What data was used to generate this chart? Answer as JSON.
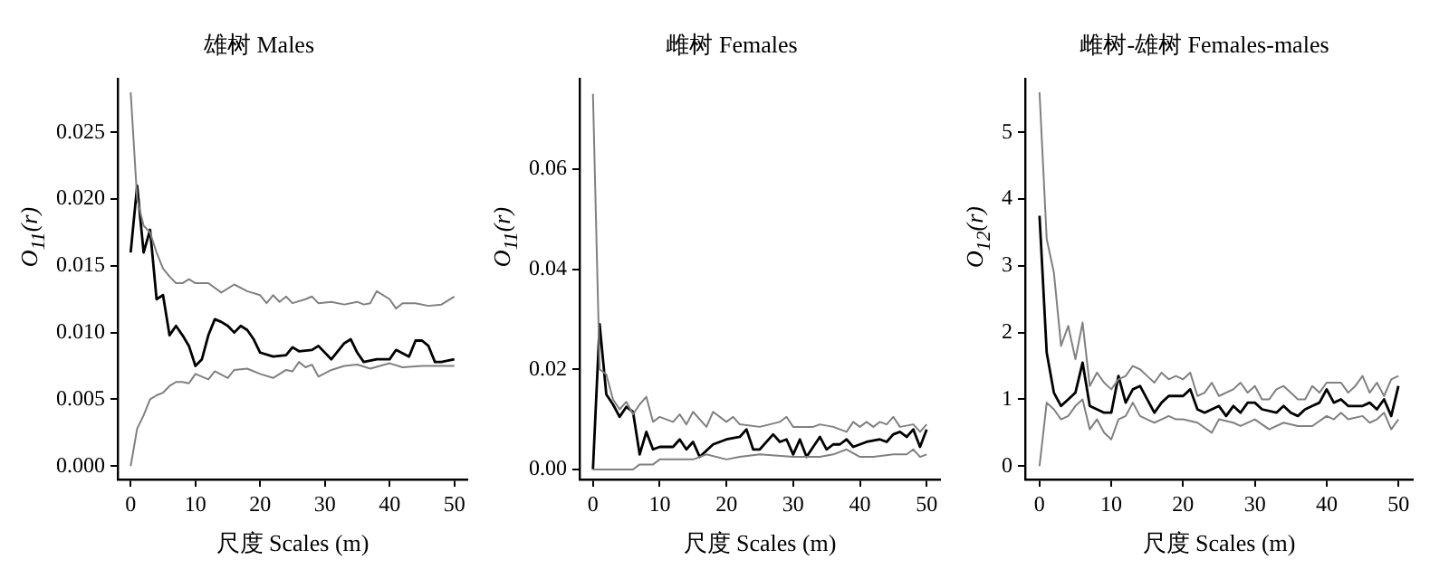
{
  "chart_data": [
    {
      "type": "line",
      "title": "雄树 Males",
      "xlabel": "尺度 Scales (m)",
      "ylabel": "O$_{11}$(r)",
      "xlim": [
        -2,
        52
      ],
      "xticks": [
        0,
        10,
        20,
        30,
        40,
        50
      ],
      "ylim": [
        -0.001,
        0.029
      ],
      "yticks": [
        {
          "value": 0,
          "label": "0.000"
        },
        {
          "value": 0.005,
          "label": "0.005"
        },
        {
          "value": 0.01,
          "label": "0.010"
        },
        {
          "value": 0.015,
          "label": "0.015"
        },
        {
          "value": 0.02,
          "label": "0.020"
        },
        {
          "value": 0.025,
          "label": "0.025"
        }
      ],
      "marker": "none",
      "series": [
        {
          "color": "#808080",
          "x": [
            0,
            1,
            2,
            3,
            4,
            5,
            6,
            7,
            8,
            9,
            10,
            12,
            14,
            16,
            18,
            20,
            21,
            22,
            23,
            24,
            25,
            27,
            28,
            29,
            31,
            33,
            35,
            36,
            37,
            38,
            40,
            41,
            42,
            44,
            46,
            48,
            50
          ],
          "values": [
            0.028,
            0.02,
            0.018,
            0.0175,
            0.016,
            0.0148,
            0.0142,
            0.0137,
            0.0137,
            0.014,
            0.0137,
            0.0137,
            0.013,
            0.0136,
            0.0131,
            0.0128,
            0.0122,
            0.0128,
            0.0123,
            0.0127,
            0.0122,
            0.0125,
            0.0127,
            0.0122,
            0.0123,
            0.0121,
            0.0123,
            0.0121,
            0.0122,
            0.0131,
            0.0125,
            0.0118,
            0.0122,
            0.0122,
            0.012,
            0.0121,
            0.0127
          ]
        },
        {
          "color": "#808080",
          "x": [
            0,
            1,
            2,
            3,
            4,
            5,
            6,
            7,
            8,
            9,
            10,
            12,
            13,
            15,
            16,
            18,
            20,
            22,
            24,
            25,
            26,
            27,
            28,
            29,
            31,
            33,
            35,
            37,
            40,
            42,
            45,
            50
          ],
          "values": [
            0,
            0.0028,
            0.0038,
            0.005,
            0.0053,
            0.0055,
            0.006,
            0.0063,
            0.0063,
            0.0062,
            0.0069,
            0.0065,
            0.0071,
            0.0066,
            0.0072,
            0.0073,
            0.0069,
            0.0066,
            0.0072,
            0.0071,
            0.0078,
            0.0074,
            0.0076,
            0.0067,
            0.0072,
            0.0075,
            0.0076,
            0.0073,
            0.0077,
            0.0074,
            0.0075,
            0.0075
          ]
        },
        {
          "color": "#000000",
          "x": [
            0,
            1,
            2,
            3,
            4,
            5,
            6,
            7,
            8,
            9,
            10,
            11,
            12,
            13,
            14,
            15,
            16,
            17,
            18,
            19,
            20,
            22,
            24,
            25,
            26,
            28,
            29,
            31,
            33,
            34,
            35,
            36,
            38,
            40,
            41,
            43,
            44,
            45,
            46,
            47,
            48,
            50
          ],
          "values": [
            0.016,
            0.021,
            0.016,
            0.0177,
            0.0125,
            0.0128,
            0.0098,
            0.0105,
            0.0098,
            0.009,
            0.0075,
            0.008,
            0.0098,
            0.011,
            0.0108,
            0.0105,
            0.01,
            0.0105,
            0.0102,
            0.0095,
            0.0085,
            0.0082,
            0.0083,
            0.0089,
            0.0086,
            0.0087,
            0.009,
            0.008,
            0.0092,
            0.0095,
            0.0085,
            0.0078,
            0.008,
            0.008,
            0.0087,
            0.0082,
            0.0094,
            0.0094,
            0.009,
            0.0078,
            0.0078,
            0.008
          ]
        }
      ]
    },
    {
      "type": "line",
      "title": "雌树 Females",
      "xlabel": "尺度 Scales (m)",
      "ylabel": "O$_{11}$(r)",
      "xlim": [
        -2,
        52
      ],
      "xticks": [
        0,
        10,
        20,
        30,
        40,
        50
      ],
      "ylim": [
        -0.002,
        0.078
      ],
      "yticks": [
        {
          "value": 0,
          "label": "0.00"
        },
        {
          "value": 0.02,
          "label": "0.02"
        },
        {
          "value": 0.04,
          "label": "0.04"
        },
        {
          "value": 0.06,
          "label": "0.06"
        }
      ],
      "marker": "none",
      "series": [
        {
          "color": "#808080",
          "x": [
            0,
            1,
            2,
            3,
            4,
            5,
            6,
            7,
            8,
            9,
            10,
            12,
            13,
            14,
            15,
            17,
            18,
            20,
            21,
            22,
            25,
            28,
            29,
            30,
            33,
            34,
            36,
            38,
            39,
            40,
            41,
            42,
            43,
            44,
            45,
            46,
            48,
            49,
            50
          ],
          "values": [
            0.075,
            0.02,
            0.019,
            0.014,
            0.012,
            0.0135,
            0.011,
            0.013,
            0.0145,
            0.0095,
            0.0105,
            0.0095,
            0.011,
            0.009,
            0.0115,
            0.0085,
            0.0115,
            0.0095,
            0.0105,
            0.009,
            0.0085,
            0.0095,
            0.0105,
            0.0085,
            0.0085,
            0.009,
            0.0085,
            0.0075,
            0.0095,
            0.0085,
            0.0095,
            0.0085,
            0.0095,
            0.009,
            0.0105,
            0.0085,
            0.009,
            0.0075,
            0.009
          ]
        },
        {
          "color": "#808080",
          "x": [
            0,
            6,
            7,
            9,
            10,
            15,
            17,
            20,
            22,
            25,
            30,
            34,
            36,
            38,
            40,
            42,
            45,
            47,
            48,
            49,
            50
          ],
          "values": [
            0,
            0,
            0.001,
            0.001,
            0.002,
            0.002,
            0.003,
            0.002,
            0.0025,
            0.003,
            0.0025,
            0.0025,
            0.003,
            0.004,
            0.0025,
            0.0025,
            0.003,
            0.003,
            0.004,
            0.0025,
            0.003
          ]
        },
        {
          "color": "#000000",
          "x": [
            0,
            1,
            2,
            3,
            4,
            5,
            6,
            7,
            8,
            9,
            10,
            12,
            13,
            14,
            15,
            16,
            18,
            20,
            22,
            23,
            24,
            25,
            27,
            28,
            29,
            30,
            31,
            32,
            34,
            35,
            36,
            37,
            38,
            39,
            41,
            43,
            44,
            45,
            46,
            47,
            48,
            49,
            50
          ],
          "values": [
            0,
            0.029,
            0.015,
            0.013,
            0.0105,
            0.0125,
            0.0115,
            0.003,
            0.0075,
            0.004,
            0.0045,
            0.0045,
            0.006,
            0.004,
            0.0055,
            0.0025,
            0.005,
            0.006,
            0.0065,
            0.008,
            0.004,
            0.004,
            0.007,
            0.0055,
            0.006,
            0.003,
            0.006,
            0.0025,
            0.0065,
            0.004,
            0.005,
            0.005,
            0.006,
            0.0045,
            0.0055,
            0.006,
            0.0055,
            0.007,
            0.0075,
            0.0065,
            0.008,
            0.0045,
            0.008
          ]
        }
      ]
    },
    {
      "type": "line",
      "title": "雌树-雄树 Females-males",
      "xlabel": "尺度 Scales (m)",
      "ylabel": "O$_{12}$(r)",
      "xlim": [
        -2,
        52
      ],
      "xticks": [
        0,
        10,
        20,
        30,
        40,
        50
      ],
      "ylim": [
        -0.2,
        5.8
      ],
      "yticks": [
        0,
        1,
        2,
        3,
        4,
        5
      ],
      "marker": "none",
      "series": [
        {
          "color": "#808080",
          "x": [
            0,
            1,
            2,
            3,
            4,
            5,
            6,
            7,
            8,
            9,
            10,
            11,
            12,
            13,
            14,
            15,
            16,
            17,
            18,
            19,
            20,
            21,
            22,
            23,
            24,
            25,
            27,
            28,
            29,
            30,
            31,
            32,
            33,
            34,
            35,
            36,
            37,
            38,
            39,
            40,
            42,
            43,
            44,
            45,
            46,
            47,
            48,
            49,
            50
          ],
          "values": [
            5.6,
            3.4,
            2.9,
            1.8,
            2.1,
            1.6,
            2.15,
            1.2,
            1.4,
            1.25,
            1.15,
            1.3,
            1.35,
            1.5,
            1.45,
            1.35,
            1.25,
            1.4,
            1.3,
            1.35,
            1.3,
            1.4,
            1.05,
            1.1,
            1.25,
            1.05,
            1.15,
            1.25,
            1.1,
            1.2,
            1.0,
            1.0,
            1.15,
            1.2,
            1.1,
            1.0,
            1.0,
            1.2,
            1.1,
            1.25,
            1.25,
            1.1,
            1.2,
            1.35,
            1.1,
            1.25,
            1.05,
            1.3,
            1.35
          ]
        },
        {
          "color": "#808080",
          "x": [
            0,
            1,
            2,
            3,
            4,
            5,
            6,
            7,
            8,
            9,
            10,
            11,
            12,
            13,
            14,
            15,
            16,
            17,
            18,
            19,
            20,
            22,
            24,
            25,
            27,
            28,
            30,
            32,
            34,
            36,
            38,
            40,
            41,
            42,
            43,
            45,
            46,
            47,
            48,
            49,
            50
          ],
          "values": [
            0,
            0.95,
            0.85,
            0.7,
            0.75,
            0.9,
            1.0,
            0.55,
            0.7,
            0.5,
            0.4,
            0.7,
            0.75,
            0.95,
            0.75,
            0.7,
            0.65,
            0.7,
            0.75,
            0.7,
            0.7,
            0.65,
            0.5,
            0.7,
            0.65,
            0.6,
            0.7,
            0.55,
            0.65,
            0.6,
            0.6,
            0.75,
            0.7,
            0.8,
            0.7,
            0.75,
            0.65,
            0.7,
            0.8,
            0.55,
            0.7
          ]
        },
        {
          "color": "#000000",
          "x": [
            0,
            1,
            2,
            3,
            4,
            5,
            6,
            7,
            8,
            9,
            10,
            11,
            12,
            13,
            14,
            15,
            16,
            17,
            18,
            20,
            21,
            22,
            23,
            24,
            25,
            26,
            27,
            28,
            29,
            30,
            31,
            33,
            34,
            35,
            36,
            37,
            38,
            39,
            40,
            41,
            42,
            43,
            45,
            46,
            47,
            48,
            49,
            50
          ],
          "values": [
            3.75,
            1.7,
            1.1,
            0.9,
            1.0,
            1.1,
            1.55,
            0.9,
            0.85,
            0.8,
            0.8,
            1.35,
            0.95,
            1.15,
            1.2,
            1.0,
            0.8,
            0.95,
            1.05,
            1.05,
            1.15,
            0.85,
            0.8,
            0.85,
            0.9,
            0.75,
            0.9,
            0.8,
            0.95,
            0.95,
            0.85,
            0.8,
            0.9,
            0.8,
            0.75,
            0.85,
            0.9,
            0.95,
            1.15,
            0.95,
            1.0,
            0.9,
            0.9,
            0.95,
            0.85,
            1.0,
            0.75,
            1.2
          ]
        }
      ]
    }
  ]
}
